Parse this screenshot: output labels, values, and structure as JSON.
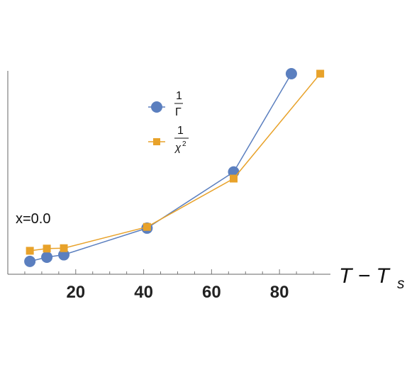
{
  "chart_data": {
    "type": "line",
    "xlabel": {
      "main": "T − T",
      "sub": "s"
    },
    "ylabel": "",
    "xlim": [
      0,
      95
    ],
    "ylim": [
      0.0,
      1.0
    ],
    "xticks": [
      20,
      40,
      60,
      80
    ],
    "grid": false,
    "legend_position": "top-center",
    "annotation": "x=0.0",
    "series": [
      {
        "key": "inv_gamma",
        "legend": {
          "num": "1",
          "den": "Γ",
          "sup": ""
        },
        "color": "#5b7fbf",
        "marker": "circle",
        "points": [
          [
            6.5,
            0.064
          ],
          [
            11.5,
            0.085
          ],
          [
            16.5,
            0.097
          ],
          [
            41,
            0.23
          ],
          [
            66.5,
            0.51
          ],
          [
            83.5,
            1.0
          ]
        ]
      },
      {
        "key": "inv_chi2",
        "legend": {
          "num": "1",
          "den": "χ",
          "sup": "2"
        },
        "color": "#e8a22a",
        "marker": "square",
        "points": [
          [
            6.5,
            0.117
          ],
          [
            11.5,
            0.128
          ],
          [
            16.5,
            0.13
          ],
          [
            41,
            0.236
          ],
          [
            66.5,
            0.477
          ],
          [
            92,
            1.0
          ]
        ]
      }
    ]
  }
}
